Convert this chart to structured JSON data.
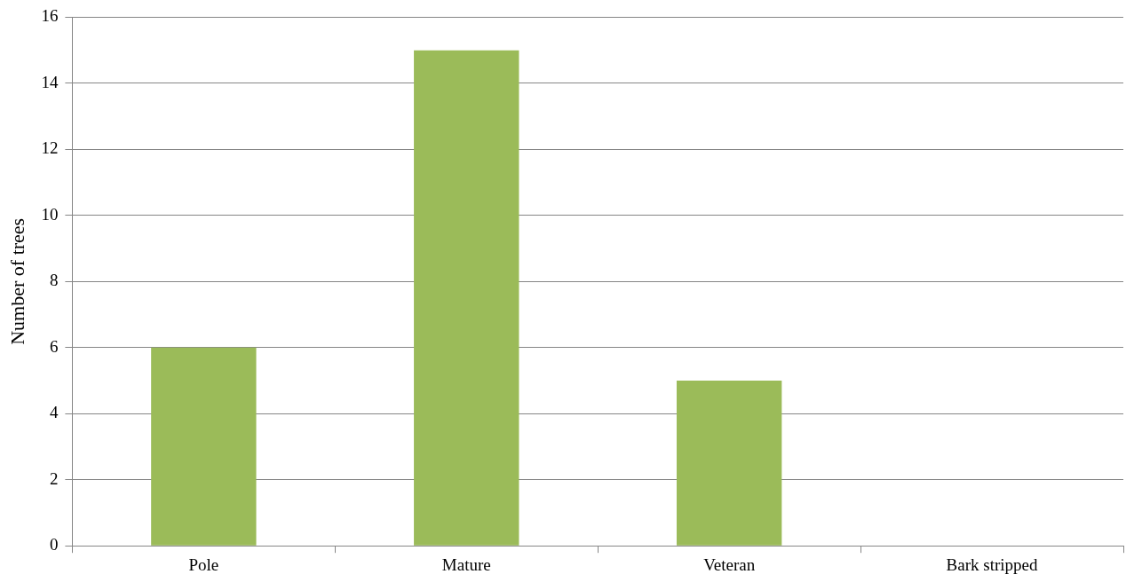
{
  "chart_data": {
    "type": "bar",
    "ylabel": "Number of trees",
    "categories": [
      "Pole",
      "Mature",
      "Veteran",
      "Bark stripped"
    ],
    "values": [
      6,
      15,
      5,
      0
    ],
    "color": "#9bbb59",
    "ylim": [
      0,
      16
    ],
    "yticks": [
      0,
      2,
      4,
      6,
      8,
      10,
      12,
      14,
      16
    ],
    "grid": "y"
  }
}
